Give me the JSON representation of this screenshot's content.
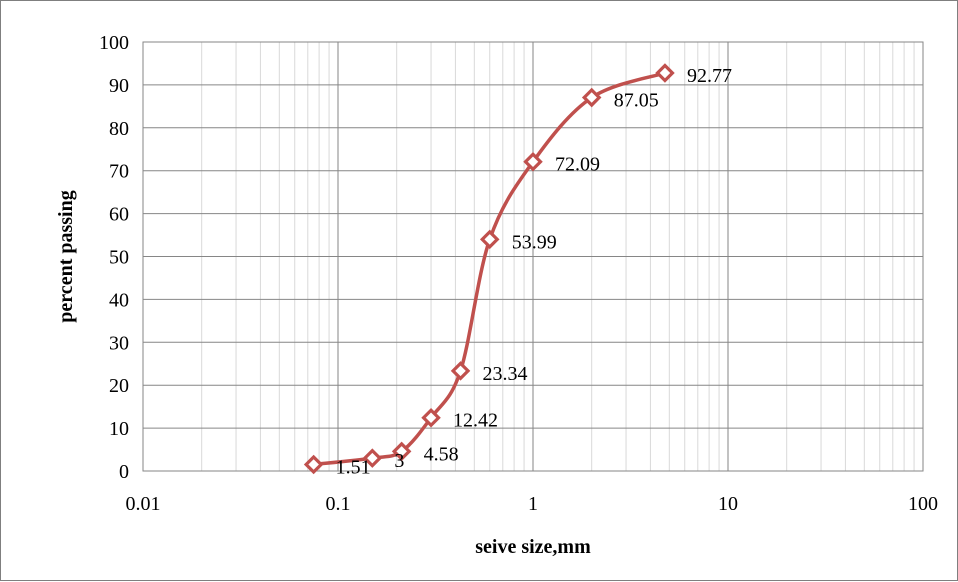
{
  "chart_data": {
    "type": "scatter",
    "x_scale": "log",
    "xlabel": "seive size,mm",
    "ylabel": "percent passing",
    "xlim": [
      0.01,
      100
    ],
    "ylim": [
      0,
      100
    ],
    "x_ticks": [
      "0.01",
      "0.1",
      "1",
      "10",
      "100"
    ],
    "y_ticks": [
      "0",
      "10",
      "20",
      "30",
      "40",
      "50",
      "60",
      "70",
      "80",
      "90",
      "100"
    ],
    "grid": true,
    "legend": "none",
    "series_color": "#c0504d",
    "marker": "diamond-open",
    "line": "smooth",
    "points": [
      {
        "x": 0.075,
        "y": 1.51,
        "label": "1.51"
      },
      {
        "x": 0.15,
        "y": 3,
        "label": "3"
      },
      {
        "x": 0.212,
        "y": 4.58,
        "label": "4.58"
      },
      {
        "x": 0.3,
        "y": 12.42,
        "label": "12.42"
      },
      {
        "x": 0.425,
        "y": 23.34,
        "label": "23.34"
      },
      {
        "x": 0.6,
        "y": 53.99,
        "label": "53.99"
      },
      {
        "x": 1.0,
        "y": 72.09,
        "label": "72.09"
      },
      {
        "x": 2.0,
        "y": 87.05,
        "label": "87.05"
      },
      {
        "x": 4.75,
        "y": 92.77,
        "label": "92.77"
      }
    ]
  }
}
